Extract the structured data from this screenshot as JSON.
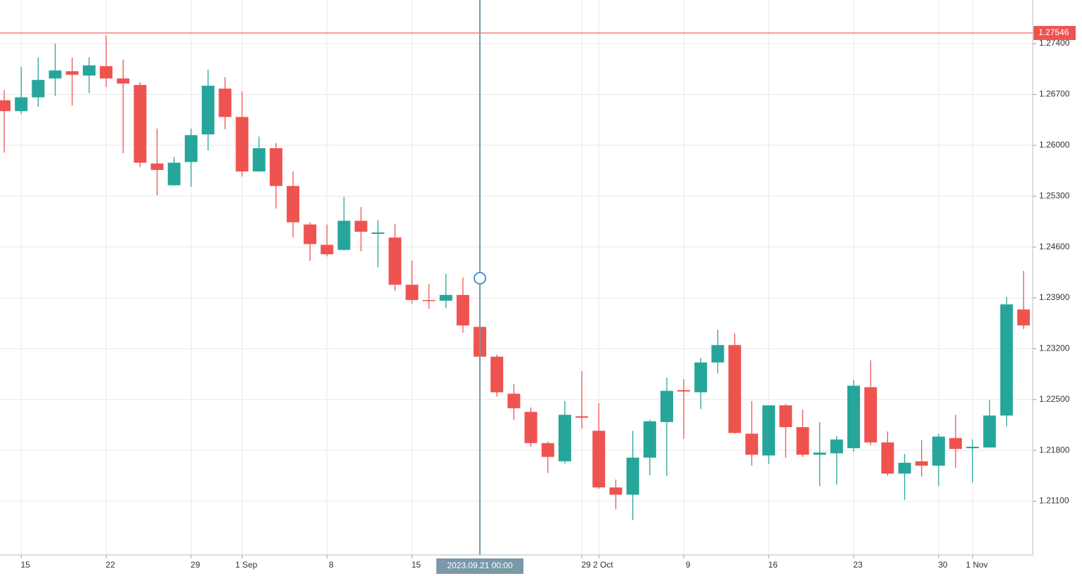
{
  "chart_data": {
    "type": "candlestick",
    "categories": [
      null,
      "15",
      null,
      null,
      null,
      null,
      "22",
      null,
      null,
      null,
      null,
      "29",
      null,
      null,
      "1 Sep",
      null,
      null,
      null,
      null,
      "8",
      null,
      null,
      null,
      null,
      "15",
      null,
      null,
      null,
      null,
      null,
      null,
      null,
      null,
      null,
      "29",
      "2 Oct",
      null,
      null,
      null,
      null,
      "9",
      null,
      null,
      null,
      null,
      "16",
      null,
      null,
      null,
      null,
      "23",
      null,
      null,
      null,
      null,
      "30",
      null,
      "1 Nov",
      null,
      null,
      null
    ],
    "open": [
      1.2662,
      1.2647,
      1.2666,
      1.2692,
      1.2702,
      1.2696,
      1.2709,
      1.2692,
      1.2683,
      1.2575,
      1.2545,
      1.2577,
      1.2615,
      1.2678,
      1.2639,
      1.2564,
      1.2596,
      1.2544,
      1.2491,
      1.2463,
      1.2456,
      1.2496,
      1.2478,
      1.2473,
      1.2408,
      1.2387,
      1.2386,
      1.2394,
      1.235,
      1.2309,
      1.2258,
      1.2233,
      1.219,
      1.2165,
      1.2227,
      1.2207,
      1.2129,
      1.2119,
      1.217,
      1.2219,
      1.2263,
      1.226,
      1.2301,
      1.2325,
      1.2203,
      1.2173,
      1.2242,
      1.2212,
      1.2174,
      1.2176,
      1.2183,
      1.2267,
      1.2191,
      1.2148,
      1.2165,
      1.2159,
      1.2197,
      1.2183,
      1.2184,
      1.2228,
      1.2374
    ],
    "high": [
      1.2676,
      1.2708,
      1.2721,
      1.274,
      1.2721,
      1.2721,
      1.2751,
      1.2718,
      1.2687,
      1.2623,
      1.2584,
      1.2623,
      1.2704,
      1.2694,
      1.2674,
      1.2612,
      1.2603,
      1.2564,
      1.2494,
      1.2491,
      1.2529,
      1.2515,
      1.2497,
      1.2492,
      1.2441,
      1.2409,
      1.2423,
      1.2418,
      1.235,
      1.2312,
      1.2271,
      1.2239,
      1.2192,
      1.2248,
      1.2289,
      1.2245,
      1.214,
      1.2207,
      1.2222,
      1.228,
      1.2278,
      1.2307,
      1.2346,
      1.2341,
      1.2248,
      1.2242,
      1.2244,
      1.2236,
      1.2219,
      1.22,
      1.2277,
      1.2304,
      1.2206,
      1.2175,
      1.2194,
      1.2203,
      1.2229,
      1.2195,
      1.2249,
      1.2391,
      1.2427
    ],
    "low": [
      1.259,
      1.2643,
      1.2653,
      1.2668,
      1.2655,
      1.2672,
      1.268,
      1.2589,
      1.257,
      1.2531,
      1.2544,
      1.2543,
      1.2593,
      1.2622,
      1.2557,
      1.2564,
      1.2513,
      1.2473,
      1.2441,
      1.2447,
      1.2455,
      1.2454,
      1.2432,
      1.24,
      1.2382,
      1.2375,
      1.2376,
      1.2342,
      1.2307,
      1.2254,
      1.2222,
      1.2185,
      1.2149,
      1.2162,
      1.221,
      1.2127,
      1.2099,
      1.2084,
      1.2146,
      1.2145,
      1.2196,
      1.2237,
      1.2286,
      1.2203,
      1.2159,
      1.2161,
      1.217,
      1.2171,
      1.2131,
      1.2133,
      1.2178,
      1.2187,
      1.2145,
      1.2112,
      1.2144,
      1.2131,
      1.2156,
      1.2136,
      1.2184,
      1.2213,
      1.2347
    ],
    "close": [
      1.2647,
      1.2666,
      1.269,
      1.2703,
      1.2697,
      1.271,
      1.2692,
      1.2685,
      1.2576,
      1.2566,
      1.2576,
      1.2614,
      1.2682,
      1.2639,
      1.2564,
      1.2596,
      1.2544,
      1.2494,
      1.2464,
      1.245,
      1.2496,
      1.2481,
      1.248,
      1.2408,
      1.2387,
      1.2386,
      1.2394,
      1.2352,
      1.2309,
      1.226,
      1.2238,
      1.219,
      1.2171,
      1.2229,
      1.2225,
      1.2129,
      1.2119,
      1.217,
      1.222,
      1.2262,
      1.2261,
      1.2301,
      1.2325,
      1.2204,
      1.2174,
      1.2242,
      1.2212,
      1.2174,
      1.2177,
      1.2195,
      1.2269,
      1.2191,
      1.2148,
      1.2163,
      1.2159,
      1.2199,
      1.2182,
      1.2185,
      1.2228,
      1.2381,
      1.2352
    ],
    "up_color": "#26a69a",
    "down_color": "#ef5350",
    "ylim": [
      1.20361,
      1.28
    ],
    "yticks": [
      {
        "value": 1.211,
        "label": "1.21100"
      },
      {
        "value": 1.218,
        "label": "1.21800"
      },
      {
        "value": 1.225,
        "label": "1.22500"
      },
      {
        "value": 1.232,
        "label": "1.23200"
      },
      {
        "value": 1.239,
        "label": "1.23900"
      },
      {
        "value": 1.246,
        "label": "1.24600"
      },
      {
        "value": 1.253,
        "label": "1.25300"
      },
      {
        "value": 1.26,
        "label": "1.26000"
      },
      {
        "value": 1.267,
        "label": "1.26700"
      },
      {
        "value": 1.274,
        "label": "1.27400"
      }
    ],
    "grid": true,
    "current_price": 1.27546,
    "price_line_color": "#ef5350",
    "crosshair_index": 28,
    "crosshair_label": "2023.09.21 00:00"
  }
}
